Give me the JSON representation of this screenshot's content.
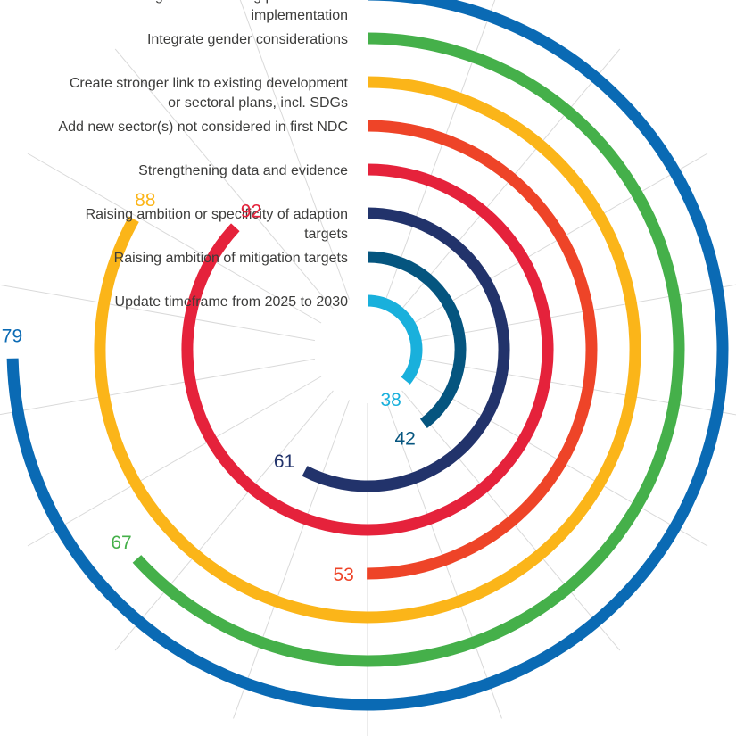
{
  "chart_data": {
    "type": "radial-bar",
    "max_value": 100,
    "grid": true,
    "categories": [
      "Including and monitoring plan for NDC implementation",
      "Integrate gender considerations",
      "Create stronger link to existing development or sectoral plans, incl. SDGs",
      "Add new sector(s) not considered in first NDC",
      "Strengthening data and evidence",
      "Raising ambition or specificity of adaption targets",
      "Raising ambition of mitigation targets",
      "Update timeframe from 2025 to 2030"
    ],
    "label_lines": [
      [
        "Including and monitoring plan for    NDC",
        "implementation"
      ],
      [
        "Integrate gender considerations"
      ],
      [
        "Create stronger link to existing      development",
        "or sectoral plans, incl. SDGs"
      ],
      [
        "Add new sector(s) not considered in first NDC"
      ],
      [
        "Strengthening data and evidence"
      ],
      [
        "Raising ambition or specificity of adaption",
        "targets"
      ],
      [
        "Raising ambition of mitigation targets"
      ],
      [
        "Update timeframe from 2025 to 2030"
      ]
    ],
    "values": [
      79,
      67,
      88,
      53,
      92,
      61,
      42,
      38
    ],
    "value_labels": [
      "79",
      "67",
      "88",
      "53",
      "92",
      "61",
      "42",
      "38"
    ],
    "colors": [
      "#0a6ab4",
      "#45b04a",
      "#fbb519",
      "#ee4428",
      "#e5223b",
      "#22336b",
      "#05557f",
      "#19b0dc"
    ]
  }
}
